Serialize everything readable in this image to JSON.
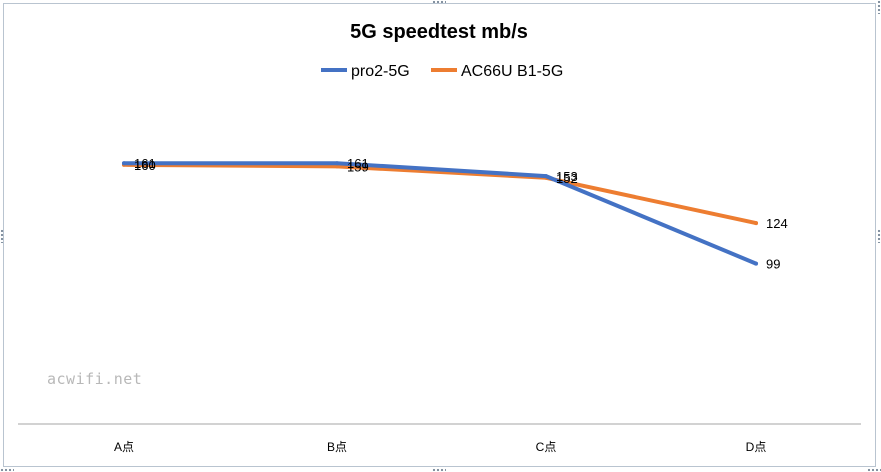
{
  "chart_data": {
    "type": "line",
    "title": "5G speedtest  mb/s",
    "categories": [
      "A点",
      "B点",
      "C点",
      "D点"
    ],
    "series": [
      {
        "name": "pro2-5G",
        "values": [
          161,
          161,
          153,
          99
        ],
        "color": "#4472c4"
      },
      {
        "name": "AC66U B1-5G",
        "values": [
          160,
          159,
          152,
          124
        ],
        "color": "#ed7d31"
      }
    ],
    "ylim": [
      0,
      200
    ],
    "grid": false,
    "legend": "top",
    "xlabel": "",
    "ylabel": ""
  },
  "watermark": "acwifi.net"
}
